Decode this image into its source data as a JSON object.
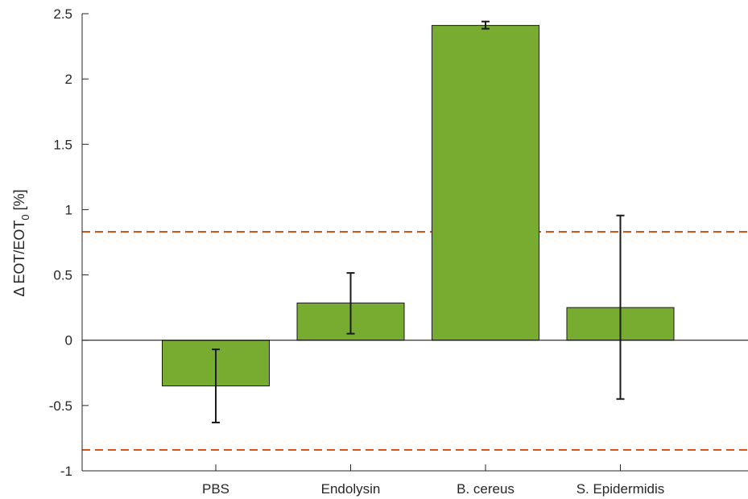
{
  "chart_data": {
    "type": "bar",
    "categories": [
      "PBS",
      "Endolysin",
      "B. cereus",
      "S. Epidermidis"
    ],
    "values": [
      -0.35,
      0.285,
      2.41,
      0.25
    ],
    "error_low": [
      -0.63,
      0.05,
      2.385,
      -0.45
    ],
    "error_high": [
      -0.07,
      0.515,
      2.44,
      0.955
    ],
    "ylabel_prefix": "Δ EOT/EOT",
    "ylabel_subscript": "0",
    "ylabel_suffix": " [%]",
    "ylim": [
      -1,
      2.5
    ],
    "yticks": [
      -1,
      -0.5,
      0,
      0.5,
      1,
      1.5,
      2,
      2.5
    ],
    "ytick_labels": [
      "-1",
      "-0.5",
      "0",
      "0.5",
      "1",
      "1.5",
      "2",
      "2.5"
    ],
    "threshold_lines": [
      0.83,
      -0.84
    ],
    "grid": false,
    "colors": {
      "bar_fill": "#77ac30",
      "bar_stroke": "#1a1a1a",
      "error_bar": "#1a1a1a",
      "threshold": "#d95319",
      "axis": "#262626",
      "zero_line": "#000000"
    }
  }
}
